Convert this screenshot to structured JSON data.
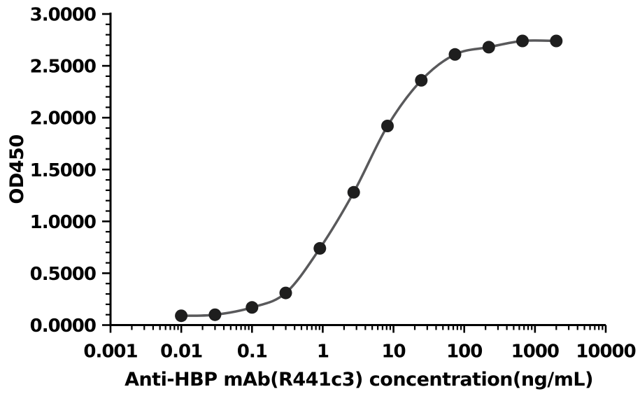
{
  "figure": {
    "background": "#ffffff"
  },
  "chart_data": {
    "type": "line",
    "title": "",
    "xlabel": "Anti-HBP mAb(R441c3) concentration(ng/mL)",
    "ylabel": "OD450",
    "x_scale": "log10",
    "xlim": [
      0.001,
      10000
    ],
    "ylim": [
      0,
      3
    ],
    "grid": false,
    "legend": false,
    "marker": "filled-circle",
    "x": [
      0.01,
      0.03,
      0.1,
      0.3,
      0.91,
      2.74,
      8.23,
      24.69,
      74.07,
      222.2,
      666.7,
      2000
    ],
    "y": [
      0.09,
      0.1,
      0.17,
      0.31,
      0.74,
      1.28,
      1.92,
      2.36,
      2.61,
      2.68,
      2.74,
      2.74
    ],
    "x_ticks": {
      "values": [
        0.001,
        0.01,
        0.1,
        1,
        10,
        100,
        1000,
        10000
      ],
      "labels": [
        "0.001",
        "0.01",
        "0.1",
        "1",
        "10",
        "100",
        "1000",
        "10000"
      ]
    },
    "y_ticks": {
      "values": [
        0,
        0.5,
        1,
        1.5,
        2,
        2.5,
        3
      ],
      "labels": [
        "0.0000",
        "0.5000",
        "1.0000",
        "1.5000",
        "2.0000",
        "2.5000",
        "3.0000"
      ]
    },
    "y_minor_step": 0.1,
    "x_minor_ticks": "log decades 2-9",
    "colors": {
      "marker": "#1e1e1e",
      "line": "#59595b",
      "axis": "#000000",
      "text": "#000000",
      "background": "#ffffff"
    }
  }
}
